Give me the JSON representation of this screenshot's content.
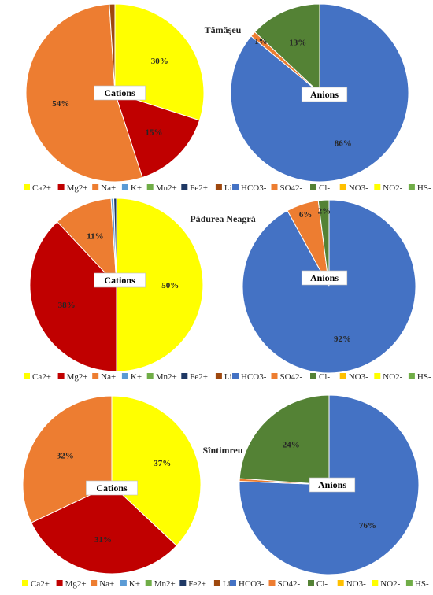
{
  "chart_data": [
    {
      "type": "pie",
      "title": "Tămăşeu",
      "label": "Cations",
      "legend_position": "bottom",
      "legend": [
        "Ca2+",
        "Mg2+",
        "Na+",
        "K+",
        "Mn2+",
        "Fe2+",
        "Li+"
      ],
      "values": [
        30,
        15,
        54,
        0,
        0,
        0,
        1
      ],
      "data_labels": [
        "30%",
        "15%",
        "54%",
        "",
        "",
        "",
        ""
      ],
      "colors": [
        "#FFFF00",
        "#C00000",
        "#ED7D31",
        "#5B9BD5",
        "#70AD47",
        "#1F3864",
        "#9E480E"
      ]
    },
    {
      "type": "pie",
      "title": "Tămăşeu",
      "label": "Anions",
      "legend_position": "bottom",
      "legend": [
        "HCO3-",
        "SO42-",
        "Cl-",
        "NO3-",
        "NO2-",
        "HS-"
      ],
      "values": [
        86,
        1,
        13,
        0,
        0,
        0
      ],
      "data_labels": [
        "86%",
        "1%",
        "13%",
        "",
        "",
        ""
      ],
      "colors": [
        "#4472C4",
        "#ED7D31",
        "#548235",
        "#FFC000",
        "#FFFF00",
        "#70AD47"
      ]
    },
    {
      "type": "pie",
      "title": "Pădurea Neagră",
      "label": "Cations",
      "legend_position": "bottom",
      "legend": [
        "Ca2+",
        "Mg2+",
        "Na+",
        "K+",
        "Mn2+",
        "Fe2+",
        "Li+"
      ],
      "values": [
        50,
        38,
        11,
        0.5,
        0,
        0.5,
        0
      ],
      "data_labels": [
        "50%",
        "38%",
        "11%",
        "",
        "",
        "",
        ""
      ],
      "colors": [
        "#FFFF00",
        "#C00000",
        "#ED7D31",
        "#5B9BD5",
        "#70AD47",
        "#1F3864",
        "#9E480E"
      ]
    },
    {
      "type": "pie",
      "title": "Pădurea Neagră",
      "label": "Anions",
      "legend_position": "bottom",
      "legend": [
        "HCO3-",
        "SO42-",
        "Cl-",
        "NO3-",
        "NO2-",
        "HS-"
      ],
      "values": [
        92,
        6,
        2,
        0,
        0,
        0
      ],
      "data_labels": [
        "92%",
        "6%",
        "2%",
        "",
        "",
        ""
      ],
      "colors": [
        "#4472C4",
        "#ED7D31",
        "#548235",
        "#FFC000",
        "#FFFF00",
        "#70AD47"
      ]
    },
    {
      "type": "pie",
      "title": "Sîntimreu",
      "label": "Cations",
      "legend_position": "bottom",
      "legend": [
        "Ca2+",
        "Mg2+",
        "Na+",
        "K+",
        "Mn2+",
        "Fe2+",
        "Li+"
      ],
      "values": [
        37,
        31,
        32,
        0,
        0,
        0,
        0
      ],
      "data_labels": [
        "37%",
        "31%",
        "32%",
        "",
        "",
        "",
        ""
      ],
      "colors": [
        "#FFFF00",
        "#C00000",
        "#ED7D31",
        "#5B9BD5",
        "#70AD47",
        "#1F3864",
        "#9E480E"
      ]
    },
    {
      "type": "pie",
      "title": "Sîntimreu",
      "label": "Anions",
      "legend_position": "bottom",
      "legend": [
        "HCO3-",
        "SO42-",
        "Cl-",
        "NO3-",
        "NO2-",
        "HS-"
      ],
      "values": [
        76,
        0.5,
        24,
        0,
        0,
        0
      ],
      "data_labels": [
        "76%",
        "",
        "24%",
        "",
        "",
        ""
      ],
      "colors": [
        "#4472C4",
        "#ED7D31",
        "#548235",
        "#FFC000",
        "#FFFF00",
        "#70AD47"
      ]
    }
  ]
}
